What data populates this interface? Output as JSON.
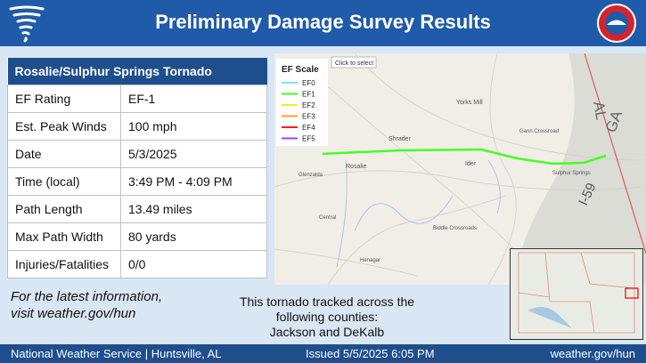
{
  "header": {
    "title": "Preliminary Damage Survey Results"
  },
  "table": {
    "title": "Rosalie/Sulphur Springs Tornado",
    "rows": [
      [
        "EF Rating",
        "EF-1"
      ],
      [
        "Est. Peak Winds",
        "100 mph"
      ],
      [
        "Date",
        "5/3/2025"
      ],
      [
        "Time (local)",
        "3:49 PM - 4:09 PM"
      ],
      [
        "Path Length",
        "13.49 miles"
      ],
      [
        "Max Path Width",
        "80 yards"
      ],
      [
        "Injuries/Fatalities",
        "0/0"
      ]
    ]
  },
  "info": [
    "For the latest information,",
    "visit weather.gov/hun"
  ],
  "counties": [
    "This tornado tracked across the",
    "following counties:",
    "Jackson and DeKalb"
  ],
  "map": {
    "tooltip": "Click to select",
    "legend_title": "EF Scale",
    "legend": [
      {
        "name": "EF0",
        "color": "#7fe3ea"
      },
      {
        "name": "EF1",
        "color": "#44ff22"
      },
      {
        "name": "EF2",
        "color": "#ffe81a"
      },
      {
        "name": "EF3",
        "color": "#ffa020"
      },
      {
        "name": "EF4",
        "color": "#ff1a1a"
      },
      {
        "name": "EF5",
        "color": "#a040ff"
      }
    ],
    "labels": [
      "Yorks Mill",
      "Gann Crossroad",
      "Shrader",
      "Ider",
      "Rosalie",
      "Glenzalda",
      "Sulphur Springs",
      "Central",
      "Biddle Crossroads",
      "Henagar",
      "AL",
      "GA",
      "I-59"
    ]
  },
  "footer": {
    "left": "National Weather Service | Huntsville, AL",
    "center": "Issued 5/5/2025 6:05 PM",
    "right": "weather.gov/hun"
  }
}
